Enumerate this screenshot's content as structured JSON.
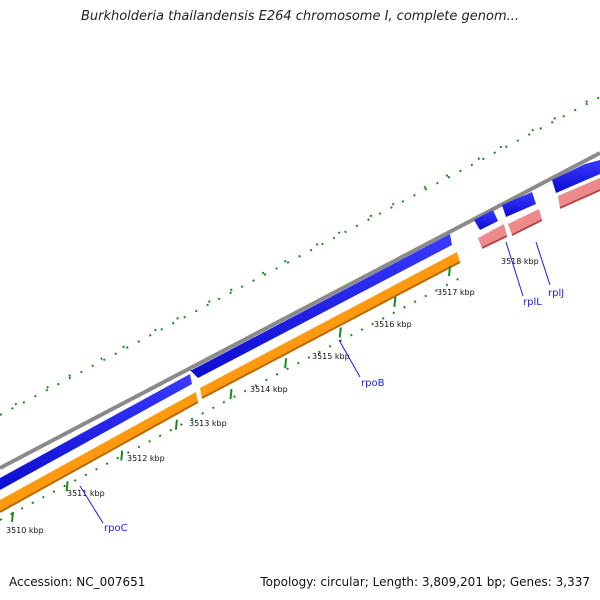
{
  "title": "Burkholderia thailandensis E264 chromosome I, complete genom...",
  "footer": {
    "accession": "Accession: NC_007651",
    "stats": "Topology: circular; Length: 3,809,201 bp; Genes: 3,337"
  },
  "ticks": [
    {
      "label": "3510 kbp"
    },
    {
      "label": "3511 kbp"
    },
    {
      "label": "3512 kbp"
    },
    {
      "label": "3513 kbp"
    },
    {
      "label": "3514 kbp"
    },
    {
      "label": "3515 kbp"
    },
    {
      "label": "3516 kbp"
    },
    {
      "label": "3517 kbp"
    },
    {
      "label": "3518 kbp"
    }
  ],
  "genes": [
    {
      "name": "rpoC"
    },
    {
      "name": "rpoB"
    },
    {
      "name": "rplL"
    },
    {
      "name": "rplJ"
    }
  ],
  "colors": {
    "backbone": "#888888",
    "gene_reverse": "#1010e0",
    "cds_orange": "#ff9a10",
    "cds_pink": "#e87878",
    "tick_green": "#1a8a1a",
    "label_blue": "#1a1aff"
  }
}
